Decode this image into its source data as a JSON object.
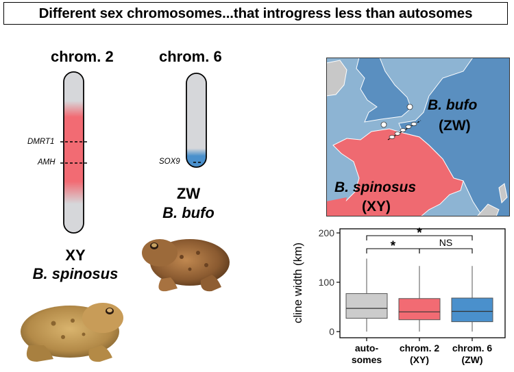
{
  "title": "Different sex chromosomes...that introgress less than autosomes",
  "chrom2": {
    "label": "chrom. 2",
    "genes": [
      "DMRT1",
      "AMH"
    ],
    "system": "XY",
    "species": "B. spinosus",
    "color": "#f26b73"
  },
  "chrom6": {
    "label": "chrom. 6",
    "genes": [
      "SOX9"
    ],
    "system": "ZW",
    "species": "B. bufo",
    "color": "#4a90cc"
  },
  "map": {
    "north_species": "B. bufo",
    "north_system": "(ZW)",
    "south_species": "B. spinosus",
    "south_system": "(XY)",
    "sea_color": "#8db4d3",
    "bufo_color": "#5a8fc0",
    "spinosus_color": "#ef6a71",
    "other_land_color": "#c8c8c8"
  },
  "chart_data": {
    "type": "box",
    "ylabel": "cline width (km)",
    "ylim": [
      0,
      210
    ],
    "yticks": [
      0,
      100,
      200
    ],
    "categories": [
      "auto-\nsomes",
      "chrom. 2\n(XY)",
      "chrom. 6\n(ZW)"
    ],
    "boxes": [
      {
        "name": "autosomes",
        "whisker_low": 0,
        "q1": 27,
        "median": 47,
        "q3": 77,
        "whisker_high": 148,
        "color": "#cccccc"
      },
      {
        "name": "chrom. 2 (XY)",
        "whisker_low": 0,
        "q1": 24,
        "median": 40,
        "q3": 67,
        "whisker_high": 133,
        "color": "#f26b73"
      },
      {
        "name": "chrom. 6 (ZW)",
        "whisker_low": 0,
        "q1": 20,
        "median": 41,
        "q3": 68,
        "whisker_high": 133,
        "color": "#4a90cc"
      }
    ],
    "significance": [
      {
        "from": 0,
        "to": 2,
        "label": "*"
      },
      {
        "from": 0,
        "to": 1,
        "label": "*"
      },
      {
        "from": 1,
        "to": 2,
        "label": "NS"
      }
    ]
  }
}
